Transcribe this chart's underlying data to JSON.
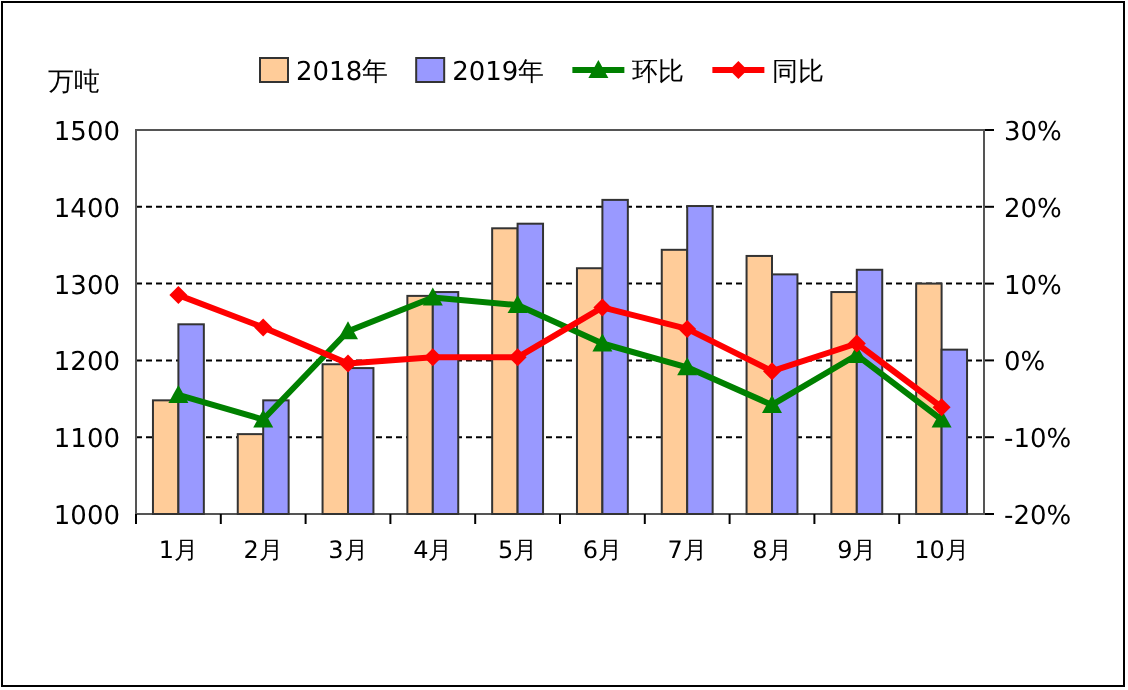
{
  "chart_data": {
    "type": "bar",
    "ylabel": "万吨",
    "categories": [
      "1月",
      "2月",
      "3月",
      "4月",
      "5月",
      "6月",
      "7月",
      "8月",
      "9月",
      "10月"
    ],
    "series": [
      {
        "name": "2018年",
        "color": "#ffcc99",
        "values": [
          1148,
          1104,
          1195,
          1284,
          1372,
          1320,
          1344,
          1336,
          1289,
          1300
        ]
      },
      {
        "name": "2019年",
        "color": "#9999ff",
        "values": [
          1247,
          1148,
          1190,
          1289,
          1378,
          1409,
          1401,
          1312,
          1318,
          1214
        ]
      },
      {
        "name": "环比",
        "type": "line",
        "axis": "y2",
        "color": "#008000",
        "marker": "triangle",
        "values": [
          -4.5,
          -7.7,
          3.8,
          8.2,
          7.2,
          2.2,
          -0.9,
          -5.8,
          0.7,
          -7.7
        ]
      },
      {
        "name": "同比",
        "type": "line",
        "axis": "y2",
        "color": "#ff0000",
        "marker": "diamond",
        "values": [
          8.5,
          4.3,
          -0.4,
          0.4,
          0.4,
          6.9,
          4.1,
          -1.4,
          2.2,
          -6.1
        ]
      }
    ],
    "ylim": [
      1000,
      1500
    ],
    "yticks": [
      1000,
      1100,
      1200,
      1300,
      1400,
      1500
    ],
    "y2lim": [
      -20,
      30
    ],
    "y2ticks": [
      {
        "value": -20,
        "label": "-20%"
      },
      {
        "value": -10,
        "label": "-10%"
      },
      {
        "value": 0,
        "label": "0%"
      },
      {
        "value": 10,
        "label": "10%"
      },
      {
        "value": 20,
        "label": "20%"
      },
      {
        "value": 30,
        "label": "30%"
      }
    ],
    "grid": "y",
    "legend": "top"
  }
}
